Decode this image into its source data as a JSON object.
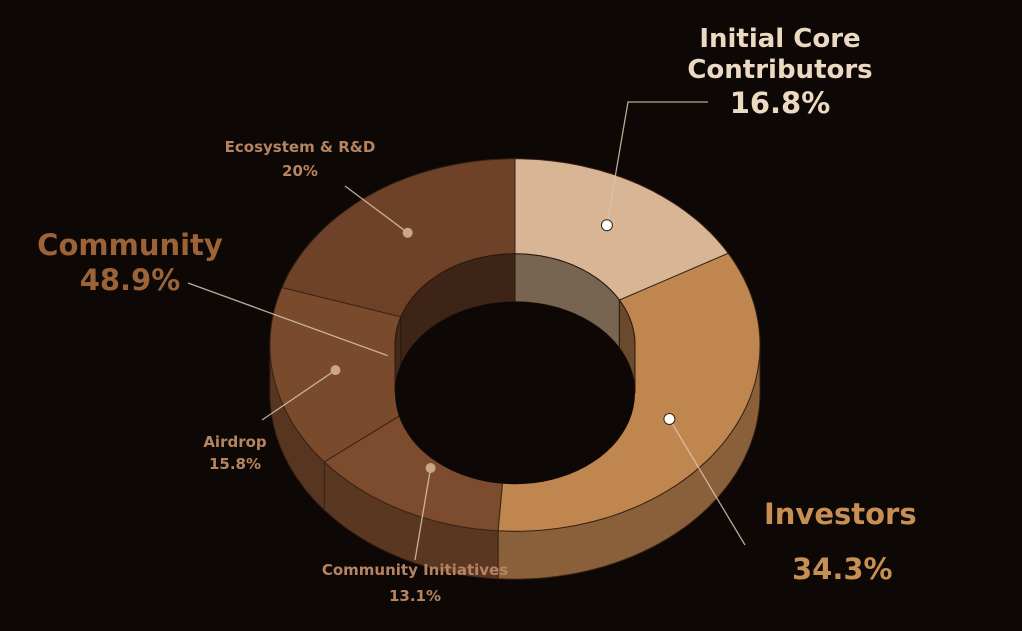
{
  "chart_data": {
    "type": "pie",
    "style": "3d-donut",
    "slices": [
      {
        "name": "Initial Core Contributors",
        "value": 16.8,
        "color": "#d8b594"
      },
      {
        "name": "Investors",
        "value": 34.3,
        "color": "#bf8650"
      },
      {
        "name": "Community Initiatives",
        "value": 13.1,
        "color": "#7d4c2e"
      },
      {
        "name": "Airdrop",
        "value": 15.8,
        "color": "#7a4a2c"
      },
      {
        "name": "Ecosystem & R&D",
        "value": 20,
        "color": "#6e4228"
      }
    ],
    "groups": [
      {
        "name": "Community",
        "value": 48.9,
        "members": [
          "Ecosystem & R&D",
          "Airdrop",
          "Community Initiatives"
        ]
      }
    ]
  },
  "labels": {
    "icc_line1": "Initial Core",
    "icc_line2": "Contributors",
    "icc_pct": "16.8%",
    "investors": "Investors",
    "investors_pct": "34.3%",
    "community": "Community",
    "community_pct": "48.9%",
    "eco": "Ecosystem & R&D",
    "eco_pct": "20%",
    "airdrop": "Airdrop",
    "airdrop_pct": "15.8%",
    "ci": "Community Initiatives",
    "ci_pct": "13.1%"
  },
  "colors": {
    "background": "#0d0705",
    "leader_line": "#d9c4ad",
    "marker": "#ffffff"
  }
}
